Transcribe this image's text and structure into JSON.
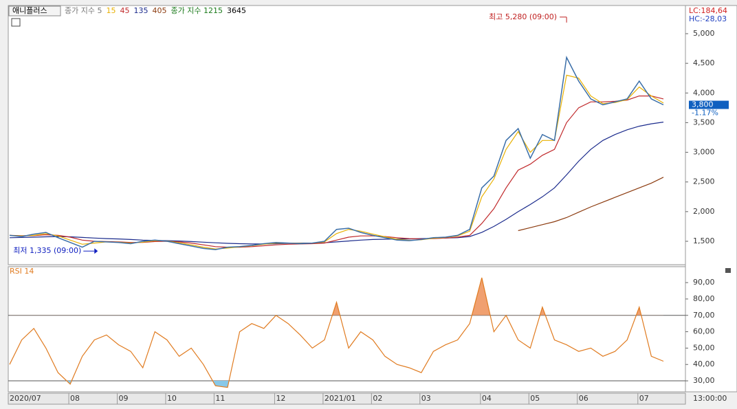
{
  "chart_data": [
    {
      "type": "line",
      "title": "애니플러스",
      "ma_prefix": "종가 지수 5",
      "ma2_label": "종가 지수 1215",
      "ma2_extra": "3645",
      "lc_label": "LC:184,64",
      "hc_label": "HC:-28,03",
      "categories": [
        "2020/07",
        null,
        null,
        null,
        null,
        "08",
        null,
        null,
        null,
        "09",
        null,
        null,
        null,
        "10",
        null,
        null,
        null,
        "11",
        null,
        null,
        null,
        null,
        "12",
        null,
        null,
        null,
        "2021/01",
        null,
        null,
        null,
        "02",
        null,
        null,
        null,
        "03",
        null,
        null,
        null,
        null,
        "04",
        null,
        null,
        null,
        "05",
        null,
        null,
        null,
        "06",
        null,
        null,
        null,
        null,
        "07",
        null,
        null
      ],
      "series": [
        {
          "name": "애니플러스",
          "color": "#3a6ea8",
          "values": [
            1600,
            1580,
            1620,
            1650,
            1560,
            1480,
            1400,
            1500,
            1490,
            1480,
            1460,
            1500,
            1520,
            1500,
            1460,
            1420,
            1380,
            1360,
            1400,
            1410,
            1430,
            1460,
            1480,
            1470,
            1460,
            1470,
            1500,
            1700,
            1720,
            1650,
            1600,
            1560,
            1520,
            1510,
            1530,
            1560,
            1570,
            1600,
            1700,
            2400,
            2600,
            3200,
            3400,
            2900,
            3300,
            3200,
            4600,
            4200,
            3900,
            3800,
            3850,
            3900,
            4200,
            3900,
            3800
          ]
        },
        {
          "name": "15",
          "color": "#e8b000",
          "values": [
            1600,
            1590,
            1600,
            1630,
            1590,
            1520,
            1450,
            1470,
            1490,
            1485,
            1470,
            1485,
            1510,
            1505,
            1475,
            1440,
            1400,
            1370,
            1385,
            1405,
            1425,
            1450,
            1470,
            1470,
            1465,
            1468,
            1490,
            1630,
            1700,
            1670,
            1620,
            1575,
            1535,
            1515,
            1525,
            1550,
            1565,
            1590,
            1670,
            2250,
            2550,
            3050,
            3350,
            3000,
            3200,
            3200,
            4300,
            4250,
            3950,
            3820,
            3840,
            3890,
            4100,
            3950,
            3830
          ]
        },
        {
          "name": "45",
          "color": "#c0282a",
          "values": [
            1600,
            1595,
            1595,
            1610,
            1600,
            1570,
            1520,
            1500,
            1495,
            1490,
            1480,
            1480,
            1495,
            1500,
            1490,
            1470,
            1440,
            1410,
            1400,
            1400,
            1410,
            1425,
            1440,
            1450,
            1455,
            1460,
            1470,
            1520,
            1570,
            1590,
            1590,
            1580,
            1560,
            1545,
            1540,
            1545,
            1555,
            1570,
            1600,
            1800,
            2050,
            2400,
            2700,
            2800,
            2950,
            3050,
            3500,
            3750,
            3850,
            3850,
            3860,
            3880,
            3950,
            3950,
            3900
          ]
        },
        {
          "name": "135",
          "color": "#1a2a8c",
          "values": [
            1560,
            1565,
            1570,
            1575,
            1580,
            1575,
            1565,
            1555,
            1545,
            1540,
            1530,
            1520,
            1515,
            1510,
            1505,
            1495,
            1485,
            1475,
            1465,
            1460,
            1455,
            1455,
            1460,
            1465,
            1470,
            1470,
            1475,
            1490,
            1505,
            1520,
            1530,
            1535,
            1540,
            1540,
            1545,
            1550,
            1555,
            1560,
            1580,
            1650,
            1750,
            1870,
            2000,
            2120,
            2250,
            2400,
            2620,
            2850,
            3050,
            3200,
            3300,
            3380,
            3440,
            3480,
            3510
          ]
        },
        {
          "name": "405",
          "color": "#8b3a0e",
          "values": [
            null,
            null,
            null,
            null,
            null,
            null,
            null,
            null,
            null,
            null,
            null,
            null,
            null,
            null,
            null,
            null,
            null,
            null,
            null,
            null,
            null,
            null,
            null,
            null,
            null,
            null,
            null,
            null,
            null,
            null,
            null,
            null,
            null,
            null,
            null,
            null,
            null,
            null,
            null,
            null,
            null,
            null,
            1680,
            1730,
            1780,
            1830,
            1900,
            1990,
            2080,
            2160,
            2240,
            2320,
            2400,
            2480,
            2580
          ]
        }
      ],
      "high": {
        "value": 5280,
        "label": "최고 5,280 (09:00)"
      },
      "low": {
        "value": 1335,
        "label": "최저 1,335 (09:00)"
      },
      "last_price": {
        "value": 3800,
        "label": "3,800"
      },
      "change": "-1.17%",
      "ylim": [
        1106,
        5475
      ],
      "yticks": [
        {
          "value": 1500,
          "label": "1,500"
        },
        {
          "value": 2000,
          "label": "2,000"
        },
        {
          "value": 2500,
          "label": "2,500"
        },
        {
          "value": 3000,
          "label": "3,000"
        },
        {
          "value": 3500,
          "label": "3,500"
        },
        {
          "value": 4000,
          "label": "4,000"
        },
        {
          "value": 4500,
          "label": "4,500"
        },
        {
          "value": 5000,
          "label": "5,000"
        }
      ],
      "time": "13:00:00"
    },
    {
      "type": "line",
      "title": "RSI 14",
      "color": "#e07b20",
      "values": [
        40,
        55,
        62,
        50,
        35,
        28,
        45,
        55,
        58,
        52,
        48,
        38,
        60,
        55,
        45,
        50,
        40,
        27,
        26,
        60,
        65,
        62,
        70,
        65,
        58,
        50,
        55,
        78,
        50,
        60,
        55,
        45,
        40,
        38,
        35,
        48,
        52,
        55,
        65,
        93,
        60,
        70,
        55,
        50,
        75,
        55,
        52,
        48,
        50,
        45,
        48,
        55,
        75,
        45,
        42
      ],
      "levels": [
        70,
        30
      ],
      "upper_fill": "#f0a070",
      "lower_fill": "#88c8e8",
      "ylim": [
        23.3,
        99.7
      ],
      "yticks": [
        {
          "value": 30,
          "label": "30,00"
        },
        {
          "value": 40,
          "label": "40,00"
        },
        {
          "value": 50,
          "label": "50,00"
        },
        {
          "value": 60,
          "label": "60,00"
        },
        {
          "value": 70,
          "label": "70,00"
        },
        {
          "value": 80,
          "label": "80,00"
        },
        {
          "value": 90,
          "label": "90,00"
        }
      ]
    }
  ]
}
